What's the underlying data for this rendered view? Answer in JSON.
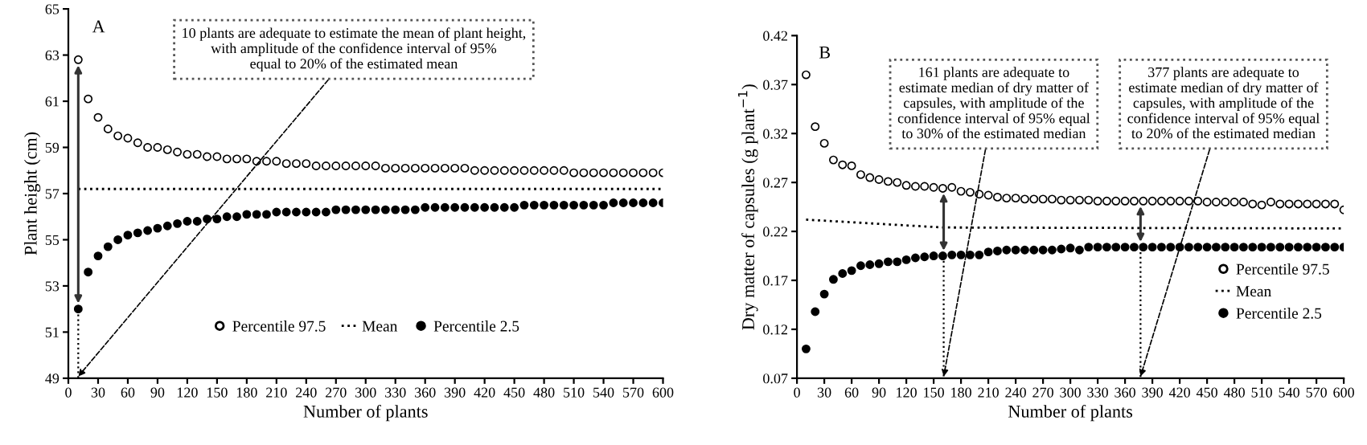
{
  "chart_data": [
    {
      "type": "scatter",
      "xlabel": "Number of plants",
      "ylabel": "Plant height (cm)",
      "x": [
        10,
        20,
        30,
        40,
        50,
        60,
        70,
        80,
        90,
        100,
        110,
        120,
        130,
        140,
        150,
        160,
        170,
        180,
        190,
        200,
        210,
        220,
        230,
        240,
        250,
        260,
        270,
        280,
        290,
        300,
        310,
        320,
        330,
        340,
        350,
        360,
        370,
        380,
        390,
        400,
        410,
        420,
        430,
        440,
        450,
        460,
        470,
        480,
        490,
        500,
        510,
        520,
        530,
        540,
        550,
        560,
        570,
        580,
        590,
        600
      ],
      "series": [
        {
          "name": "Percentile 97.5",
          "color": "#ffffff",
          "marker": "circle",
          "values": [
            62.8,
            61.1,
            60.3,
            59.8,
            59.5,
            59.4,
            59.2,
            59.0,
            59.0,
            58.9,
            58.8,
            58.7,
            58.7,
            58.6,
            58.6,
            58.5,
            58.5,
            58.5,
            58.4,
            58.4,
            58.4,
            58.3,
            58.3,
            58.3,
            58.2,
            58.2,
            58.2,
            58.2,
            58.2,
            58.2,
            58.2,
            58.1,
            58.1,
            58.1,
            58.1,
            58.1,
            58.1,
            58.1,
            58.1,
            58.1,
            58.0,
            58.0,
            58.0,
            58.0,
            58.0,
            58.0,
            58.0,
            58.0,
            58.0,
            58.0,
            57.9,
            57.9,
            57.9,
            57.9,
            57.9,
            57.9,
            57.9,
            57.9,
            57.9,
            57.9
          ]
        },
        {
          "name": "Mean",
          "type": "line",
          "color": "#000000",
          "line_style": "dotted",
          "x": [
            10,
            600
          ],
          "values": [
            57.2,
            57.2
          ]
        },
        {
          "name": "Percentile 2.5",
          "color": "#000000",
          "marker": "circle",
          "values": [
            52.0,
            53.6,
            54.3,
            54.7,
            55.0,
            55.2,
            55.3,
            55.4,
            55.5,
            55.6,
            55.7,
            55.8,
            55.8,
            55.9,
            55.9,
            56.0,
            56.0,
            56.1,
            56.1,
            56.1,
            56.2,
            56.2,
            56.2,
            56.2,
            56.2,
            56.2,
            56.3,
            56.3,
            56.3,
            56.3,
            56.3,
            56.3,
            56.3,
            56.3,
            56.3,
            56.4,
            56.4,
            56.4,
            56.4,
            56.4,
            56.4,
            56.4,
            56.4,
            56.4,
            56.4,
            56.5,
            56.5,
            56.5,
            56.5,
            56.5,
            56.5,
            56.5,
            56.5,
            56.5,
            56.6,
            56.6,
            56.6,
            56.6,
            56.6,
            56.6
          ]
        }
      ],
      "xlim": [
        0,
        600
      ],
      "xticks": [
        0,
        30,
        60,
        90,
        120,
        150,
        180,
        210,
        240,
        270,
        300,
        330,
        360,
        390,
        420,
        450,
        480,
        510,
        540,
        570,
        600
      ],
      "ylim": [
        49,
        65
      ],
      "yticks": [
        49,
        51,
        53,
        55,
        57,
        59,
        61,
        63,
        65
      ],
      "legend": "bottom",
      "grid": false,
      "ref_lines": [
        {
          "axis": "x",
          "value": 10,
          "line_style": "dotted"
        }
      ],
      "annotations": [
        "A",
        "10 plants are adequate to estimate the mean of plant height,\nwith amplitude of the confidence interval of 95%\nequal to 20% of the estimated mean"
      ]
    },
    {
      "type": "scatter",
      "xlabel": "Number of plants",
      "ylabel": "Dry matter of capsules (g plant$^{−1}$)",
      "x": [
        10,
        20,
        30,
        40,
        50,
        60,
        70,
        80,
        90,
        100,
        110,
        120,
        130,
        140,
        150,
        160,
        170,
        180,
        190,
        200,
        210,
        220,
        230,
        240,
        250,
        260,
        270,
        280,
        290,
        300,
        310,
        320,
        330,
        340,
        350,
        360,
        370,
        380,
        390,
        400,
        410,
        420,
        430,
        440,
        450,
        460,
        470,
        480,
        490,
        500,
        510,
        520,
        530,
        540,
        550,
        560,
        570,
        580,
        590,
        600
      ],
      "series": [
        {
          "name": "Percentile 97.5",
          "color": "#ffffff",
          "marker": "circle",
          "values": [
            0.38,
            0.327,
            0.31,
            0.293,
            0.288,
            0.287,
            0.278,
            0.275,
            0.273,
            0.271,
            0.27,
            0.267,
            0.266,
            0.266,
            0.265,
            0.264,
            0.265,
            0.261,
            0.26,
            0.258,
            0.257,
            0.255,
            0.254,
            0.254,
            0.253,
            0.253,
            0.253,
            0.253,
            0.252,
            0.252,
            0.252,
            0.252,
            0.251,
            0.251,
            0.251,
            0.251,
            0.251,
            0.251,
            0.251,
            0.251,
            0.251,
            0.251,
            0.251,
            0.251,
            0.25,
            0.25,
            0.25,
            0.25,
            0.25,
            0.248,
            0.247,
            0.25,
            0.248,
            0.248,
            0.248,
            0.248,
            0.248,
            0.248,
            0.248,
            0.242
          ]
        },
        {
          "name": "Mean",
          "type": "line",
          "color": "#000000",
          "line_style": "dotted",
          "x": [
            10,
            160,
            600
          ],
          "values": [
            0.232,
            0.224,
            0.223
          ]
        },
        {
          "name": "Percentile 2.5",
          "color": "#000000",
          "marker": "circle",
          "values": [
            0.1,
            0.138,
            0.156,
            0.171,
            0.177,
            0.18,
            0.185,
            0.186,
            0.187,
            0.189,
            0.189,
            0.191,
            0.193,
            0.194,
            0.195,
            0.195,
            0.196,
            0.196,
            0.196,
            0.196,
            0.199,
            0.2,
            0.201,
            0.201,
            0.201,
            0.201,
            0.201,
            0.201,
            0.202,
            0.203,
            0.201,
            0.204,
            0.204,
            0.204,
            0.204,
            0.204,
            0.204,
            0.204,
            0.204,
            0.204,
            0.204,
            0.204,
            0.204,
            0.204,
            0.204,
            0.204,
            0.204,
            0.204,
            0.204,
            0.204,
            0.204,
            0.204,
            0.204,
            0.204,
            0.204,
            0.204,
            0.204,
            0.204,
            0.204,
            0.204
          ]
        }
      ],
      "xlim": [
        0,
        600
      ],
      "xticks": [
        0,
        30,
        60,
        90,
        120,
        150,
        180,
        210,
        240,
        270,
        300,
        330,
        360,
        390,
        420,
        450,
        480,
        510,
        540,
        570,
        600
      ],
      "ylim": [
        0.07,
        0.42
      ],
      "yticks": [
        0.07,
        0.12,
        0.17,
        0.22,
        0.27,
        0.32,
        0.37,
        0.42
      ],
      "legend": "right",
      "grid": false,
      "ref_lines": [
        {
          "axis": "x",
          "value": 161,
          "line_style": "dotted"
        },
        {
          "axis": "x",
          "value": 377,
          "line_style": "dotted"
        }
      ],
      "annotations": [
        "B",
        "161 plants are adequate to\nestimate median of dry matter of\ncapsules, with amplitude of the\nconfidence interval of 95% equal\nto 30% of the estimated median",
        "377 plants are adequate to\nestimate median of dry matter of\ncapsules, with amplitude of the\nconfidence interval of 95% equal\nto 20% of the estimated median"
      ]
    }
  ]
}
